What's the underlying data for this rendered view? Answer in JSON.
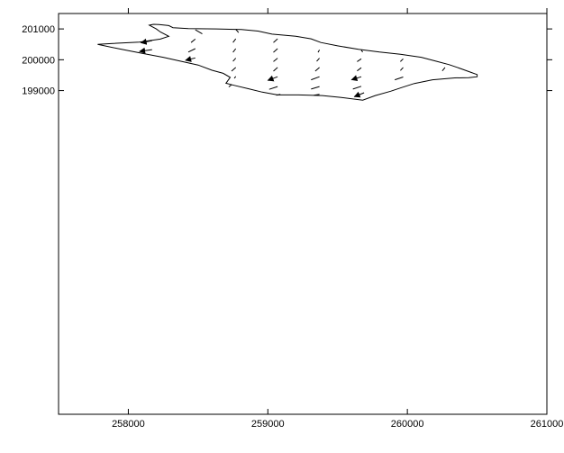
{
  "chart_data": {
    "type": "vector-field",
    "xlim": [
      257500,
      261000
    ],
    "ylim": [
      188500,
      201500
    ],
    "x_ticks": [
      258000,
      259000,
      260000,
      261000
    ],
    "x_tick_labels": [
      "258000",
      "259000",
      "260000",
      "261000"
    ],
    "y_ticks": [
      199000,
      200000,
      201000
    ],
    "y_tick_labels": [
      "199000",
      "200000",
      201000
    ],
    "grid": false,
    "boundary": [
      [
        258180,
        201150
      ],
      [
        258220,
        201140
      ],
      [
        258290,
        201110
      ],
      [
        258320,
        201040
      ],
      [
        258430,
        201010
      ],
      [
        258630,
        201000
      ],
      [
        258810,
        200980
      ],
      [
        258930,
        200930
      ],
      [
        259030,
        200830
      ],
      [
        259200,
        200760
      ],
      [
        259310,
        200680
      ],
      [
        259380,
        200560
      ],
      [
        259500,
        200450
      ],
      [
        259650,
        200340
      ],
      [
        259800,
        200250
      ],
      [
        259950,
        200180
      ],
      [
        260100,
        200080
      ],
      [
        260210,
        199950
      ],
      [
        260300,
        199840
      ],
      [
        260390,
        199700
      ],
      [
        260450,
        199600
      ],
      [
        260500,
        199520
      ],
      [
        260500,
        199450
      ],
      [
        260440,
        199420
      ],
      [
        260340,
        199410
      ],
      [
        260180,
        199350
      ],
      [
        260050,
        199230
      ],
      [
        259960,
        199100
      ],
      [
        259880,
        198980
      ],
      [
        259770,
        198840
      ],
      [
        259680,
        198690
      ],
      [
        259520,
        198780
      ],
      [
        259390,
        198840
      ],
      [
        259220,
        198860
      ],
      [
        259070,
        198860
      ],
      [
        258960,
        198950
      ],
      [
        258860,
        199060
      ],
      [
        258760,
        199170
      ],
      [
        258700,
        199240
      ],
      [
        258730,
        199430
      ],
      [
        258680,
        199560
      ],
      [
        258600,
        199660
      ],
      [
        258500,
        199830
      ],
      [
        258380,
        199950
      ],
      [
        258250,
        200080
      ],
      [
        258100,
        200210
      ],
      [
        257940,
        200350
      ],
      [
        257780,
        200500
      ],
      [
        257890,
        200530
      ],
      [
        258080,
        200570
      ],
      [
        258230,
        200670
      ],
      [
        258290,
        200760
      ],
      [
        258230,
        200900
      ],
      [
        258200,
        201000
      ],
      [
        258150,
        201120
      ],
      [
        258180,
        201150
      ]
    ],
    "vectors": [
      [
        258480,
        200970,
        258530,
        200840
      ],
      [
        258770,
        200990,
        258790,
        200880
      ],
      [
        258170,
        200620,
        258090,
        200550
      ],
      [
        258480,
        200670,
        258450,
        200560
      ],
      [
        258770,
        200680,
        258750,
        200560
      ],
      [
        259070,
        200680,
        259040,
        200560
      ],
      [
        258170,
        200330,
        258080,
        200270
      ],
      [
        258480,
        200360,
        258430,
        200250
      ],
      [
        258770,
        200360,
        258750,
        200240
      ],
      [
        259070,
        200360,
        259040,
        200240
      ],
      [
        259370,
        200320,
        259360,
        200240
      ],
      [
        259670,
        200310,
        259680,
        200250
      ],
      [
        258480,
        200060,
        258410,
        199980
      ],
      [
        258770,
        200050,
        258750,
        199950
      ],
      [
        259070,
        200050,
        259040,
        199940
      ],
      [
        259370,
        200050,
        259350,
        199950
      ],
      [
        259670,
        200030,
        259640,
        199940
      ],
      [
        259970,
        200030,
        259950,
        199940
      ],
      [
        258770,
        199750,
        258740,
        199630
      ],
      [
        259070,
        199750,
        259040,
        199630
      ],
      [
        259370,
        199750,
        259340,
        199630
      ],
      [
        259670,
        199740,
        259640,
        199640
      ],
      [
        259970,
        199750,
        259950,
        199650
      ],
      [
        260270,
        199750,
        260250,
        199640
      ],
      [
        258770,
        199460,
        258760,
        199400
      ],
      [
        259070,
        199450,
        259000,
        199330
      ],
      [
        259370,
        199450,
        259310,
        199350
      ],
      [
        259670,
        199450,
        259600,
        199350
      ],
      [
        259970,
        199440,
        259910,
        199350
      ],
      [
        258740,
        199190,
        258720,
        199120
      ],
      [
        259070,
        199130,
        259010,
        199040
      ],
      [
        259370,
        199130,
        259310,
        199050
      ],
      [
        259670,
        199140,
        259610,
        199050
      ],
      [
        259090,
        198880,
        259060,
        198850
      ],
      [
        259370,
        198880,
        259330,
        198850
      ],
      [
        259690,
        198930,
        259620,
        198800
      ]
    ]
  }
}
